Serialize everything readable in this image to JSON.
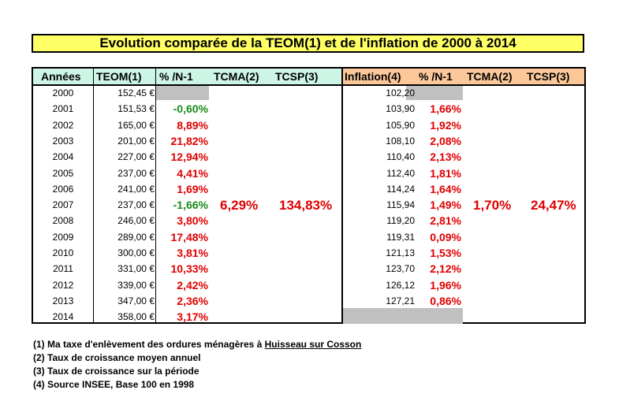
{
  "title": "Evolution comparée de la TEOM(1) et de l'inflation de 2000 à 2014",
  "headers": {
    "annees": "Années",
    "teom": "TEOM(1)",
    "pct_n1": "% /N-1",
    "tcma": "TCMA(2)",
    "tcsp": "TCSP(3)",
    "inflation": "Inflation(4)",
    "ipct_n1": "% /N-1",
    "itcma": "TCMA(2)",
    "itcsp": "TCSP(3)"
  },
  "rows": [
    {
      "year": "2000",
      "teom": "152,45 €",
      "pct": "",
      "infl": "102,20",
      "ipct": ""
    },
    {
      "year": "2001",
      "teom": "151,53 €",
      "pct": "-0,60%",
      "infl": "103,90",
      "ipct": "1,66%"
    },
    {
      "year": "2002",
      "teom": "165,00 €",
      "pct": "8,89%",
      "infl": "105,90",
      "ipct": "1,92%"
    },
    {
      "year": "2003",
      "teom": "201,00 €",
      "pct": "21,82%",
      "infl": "108,10",
      "ipct": "2,08%"
    },
    {
      "year": "2004",
      "teom": "227,00 €",
      "pct": "12,94%",
      "infl": "110,40",
      "ipct": "2,13%"
    },
    {
      "year": "2005",
      "teom": "237,00 €",
      "pct": "4,41%",
      "infl": "112,40",
      "ipct": "1,81%"
    },
    {
      "year": "2006",
      "teom": "241,00 €",
      "pct": "1,69%",
      "infl": "114,24",
      "ipct": "1,64%"
    },
    {
      "year": "2007",
      "teom": "237,00 €",
      "pct": "-1,66%",
      "infl": "115,94",
      "ipct": "1,49%"
    },
    {
      "year": "2008",
      "teom": "246,00 €",
      "pct": "3,80%",
      "infl": "119,20",
      "ipct": "2,81%"
    },
    {
      "year": "2009",
      "teom": "289,00 €",
      "pct": "17,48%",
      "infl": "119,31",
      "ipct": "0,09%"
    },
    {
      "year": "2010",
      "teom": "300,00 €",
      "pct": "3,81%",
      "infl": "121,13",
      "ipct": "1,53%"
    },
    {
      "year": "2011",
      "teom": "331,00 €",
      "pct": "10,33%",
      "infl": "123,70",
      "ipct": "2,12%"
    },
    {
      "year": "2012",
      "teom": "339,00 €",
      "pct": "2,42%",
      "infl": "126,12",
      "ipct": "1,96%"
    },
    {
      "year": "2013",
      "teom": "347,00 €",
      "pct": "2,36%",
      "infl": "127,21",
      "ipct": "0,86%"
    },
    {
      "year": "2014",
      "teom": "358,00 €",
      "pct": "3,17%",
      "infl": "",
      "ipct": ""
    }
  ],
  "summary": {
    "teom_tcma": "6,29%",
    "teom_tcsp": "134,83%",
    "infl_tcma": "1,70%",
    "infl_tcsp": "24,47%"
  },
  "notes": {
    "n1_prefix": "(1) Ma taxe d'enlèvement des ordures ménagères à ",
    "n1_link": "Huisseau sur Cosson",
    "n2": "(2) Taux de croissance moyen annuel",
    "n3": "(3) Taux de croissance sur la période",
    "n4": "(4) Source INSEE, Base 100 en 1998"
  },
  "colors": {
    "title_bg": "#ffff66",
    "left_header_bg": "#cdf5e6",
    "right_header_bg": "#fcc89a",
    "positive": "#e00000",
    "negative": "#1a8a1a",
    "empty_cell": "#c0c0c0"
  }
}
